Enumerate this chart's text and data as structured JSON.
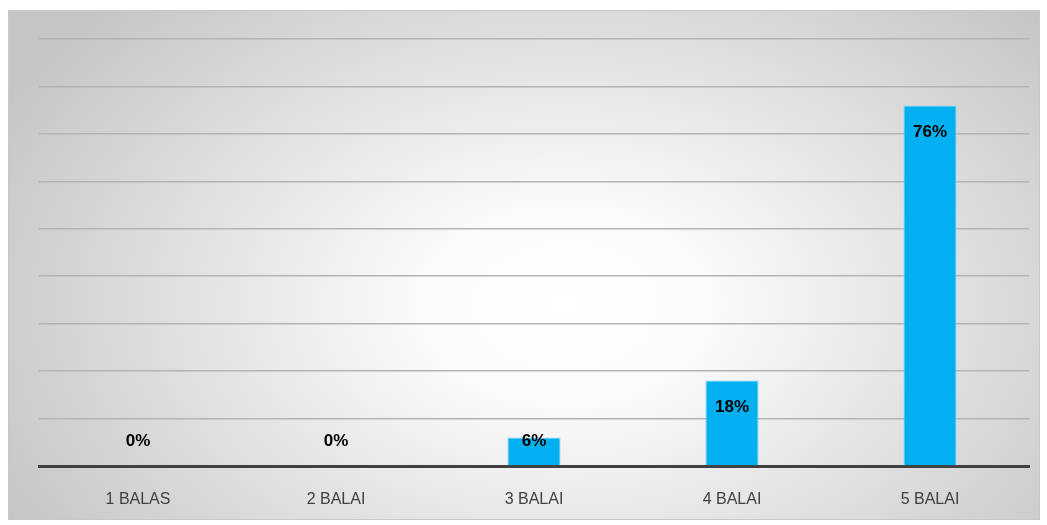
{
  "chart_data": {
    "type": "bar",
    "categories": [
      "1 BALAS",
      "2 BALAI",
      "3 BALAI",
      "4 BALAI",
      "5 BALAI"
    ],
    "values": [
      0,
      0,
      6,
      18,
      76
    ],
    "color": "#00b0f0",
    "value_labels": [
      "0%",
      "0%",
      "6%",
      "18%",
      "76%"
    ],
    "ylim": [
      0,
      90
    ],
    "grid": "y",
    "tick_labels": "x"
  }
}
